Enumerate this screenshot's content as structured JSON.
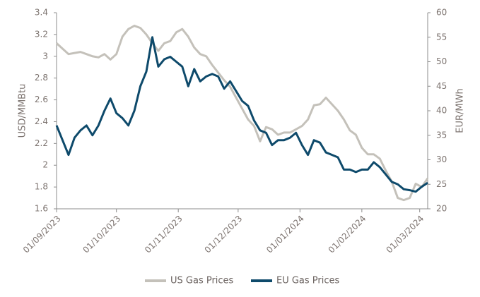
{
  "chart_data": {
    "type": "line",
    "y_label": "USD/MMBtu",
    "y2_label": "EUR/MWh",
    "x": [
      "2023-09-01",
      "2023-09-04",
      "2023-09-07",
      "2023-09-10",
      "2023-09-13",
      "2023-09-16",
      "2023-09-19",
      "2023-09-22",
      "2023-09-25",
      "2023-09-28",
      "2023-10-01",
      "2023-10-04",
      "2023-10-07",
      "2023-10-10",
      "2023-10-13",
      "2023-10-16",
      "2023-10-19",
      "2023-10-22",
      "2023-10-25",
      "2023-10-28",
      "2023-10-31",
      "2023-11-03",
      "2023-11-06",
      "2023-11-09",
      "2023-11-12",
      "2023-11-15",
      "2023-11-18",
      "2023-11-21",
      "2023-11-24",
      "2023-11-27",
      "2023-11-30",
      "2023-12-03",
      "2023-12-06",
      "2023-12-09",
      "2023-12-12",
      "2023-12-15",
      "2023-12-18",
      "2023-12-21",
      "2023-12-24",
      "2023-12-27",
      "2023-12-30",
      "2024-01-02",
      "2024-01-05",
      "2024-01-08",
      "2024-01-11",
      "2024-01-14",
      "2024-01-17",
      "2024-01-20",
      "2024-01-23",
      "2024-01-26",
      "2024-01-29",
      "2024-02-01",
      "2024-02-04",
      "2024-02-07",
      "2024-02-10",
      "2024-02-13",
      "2024-02-16",
      "2024-02-19",
      "2024-02-22",
      "2024-02-25",
      "2024-02-28",
      "2024-03-02",
      "2024-03-05"
    ],
    "series": [
      {
        "name": "US Gas Prices",
        "color": "#c4c1ba",
        "axis": "y",
        "values": [
          3.12,
          3.07,
          3.02,
          3.03,
          3.04,
          3.02,
          3.0,
          2.99,
          3.02,
          2.97,
          3.02,
          3.18,
          3.25,
          3.28,
          3.26,
          3.2,
          3.12,
          3.05,
          3.12,
          3.14,
          3.22,
          3.25,
          3.18,
          3.08,
          3.02,
          3.0,
          2.92,
          2.85,
          2.78,
          2.72,
          2.62,
          2.52,
          2.42,
          2.36,
          2.22,
          2.35,
          2.33,
          2.28,
          2.3,
          2.3,
          2.33,
          2.36,
          2.42,
          2.55,
          2.56,
          2.62,
          2.56,
          2.5,
          2.42,
          2.32,
          2.28,
          2.16,
          2.1,
          2.1,
          2.06,
          1.95,
          1.85,
          1.7,
          1.68,
          1.7,
          1.83,
          1.8,
          1.88
        ]
      },
      {
        "name": "EU Gas Prices",
        "color": "#0e4a6b",
        "axis": "y2",
        "values": [
          37,
          34,
          31,
          34.5,
          36,
          37,
          35,
          37,
          40,
          42.5,
          39.5,
          38.5,
          37,
          40,
          45,
          48,
          55,
          49,
          50.5,
          51,
          50,
          49,
          45,
          48.5,
          46,
          47,
          47.5,
          47,
          44.5,
          46,
          44,
          42,
          41,
          38,
          36,
          35.5,
          33,
          34,
          34,
          34.5,
          35.5,
          33,
          31,
          34,
          33.5,
          31.5,
          31,
          30.5,
          28,
          28,
          27.5,
          28,
          28,
          29.5,
          28.5,
          27,
          25.5,
          25,
          24,
          23.8,
          23.5,
          24.5,
          25.3
        ]
      }
    ],
    "xlim": [
      "2023-09-01",
      "2024-03-05"
    ],
    "xticks": [
      {
        "value": "2023-09-01",
        "label": "01/09/2023"
      },
      {
        "value": "2023-10-01",
        "label": "01/10/2023"
      },
      {
        "value": "2023-11-01",
        "label": "01/11/2023"
      },
      {
        "value": "2023-12-01",
        "label": "01/12/2023"
      },
      {
        "value": "2024-01-01",
        "label": "01/01/2024"
      },
      {
        "value": "2024-02-01",
        "label": "01/02/2024"
      },
      {
        "value": "2024-03-01",
        "label": "01/03/2024"
      }
    ],
    "ylim": [
      1.6,
      3.4
    ],
    "yticks": [
      1.6,
      1.8,
      2,
      2.2,
      2.4,
      2.6,
      2.8,
      3,
      3.2,
      3.4
    ],
    "y2lim": [
      20,
      60
    ],
    "y2ticks": [
      20,
      25,
      30,
      35,
      40,
      45,
      50,
      55,
      60
    ],
    "legend": "bottom"
  }
}
